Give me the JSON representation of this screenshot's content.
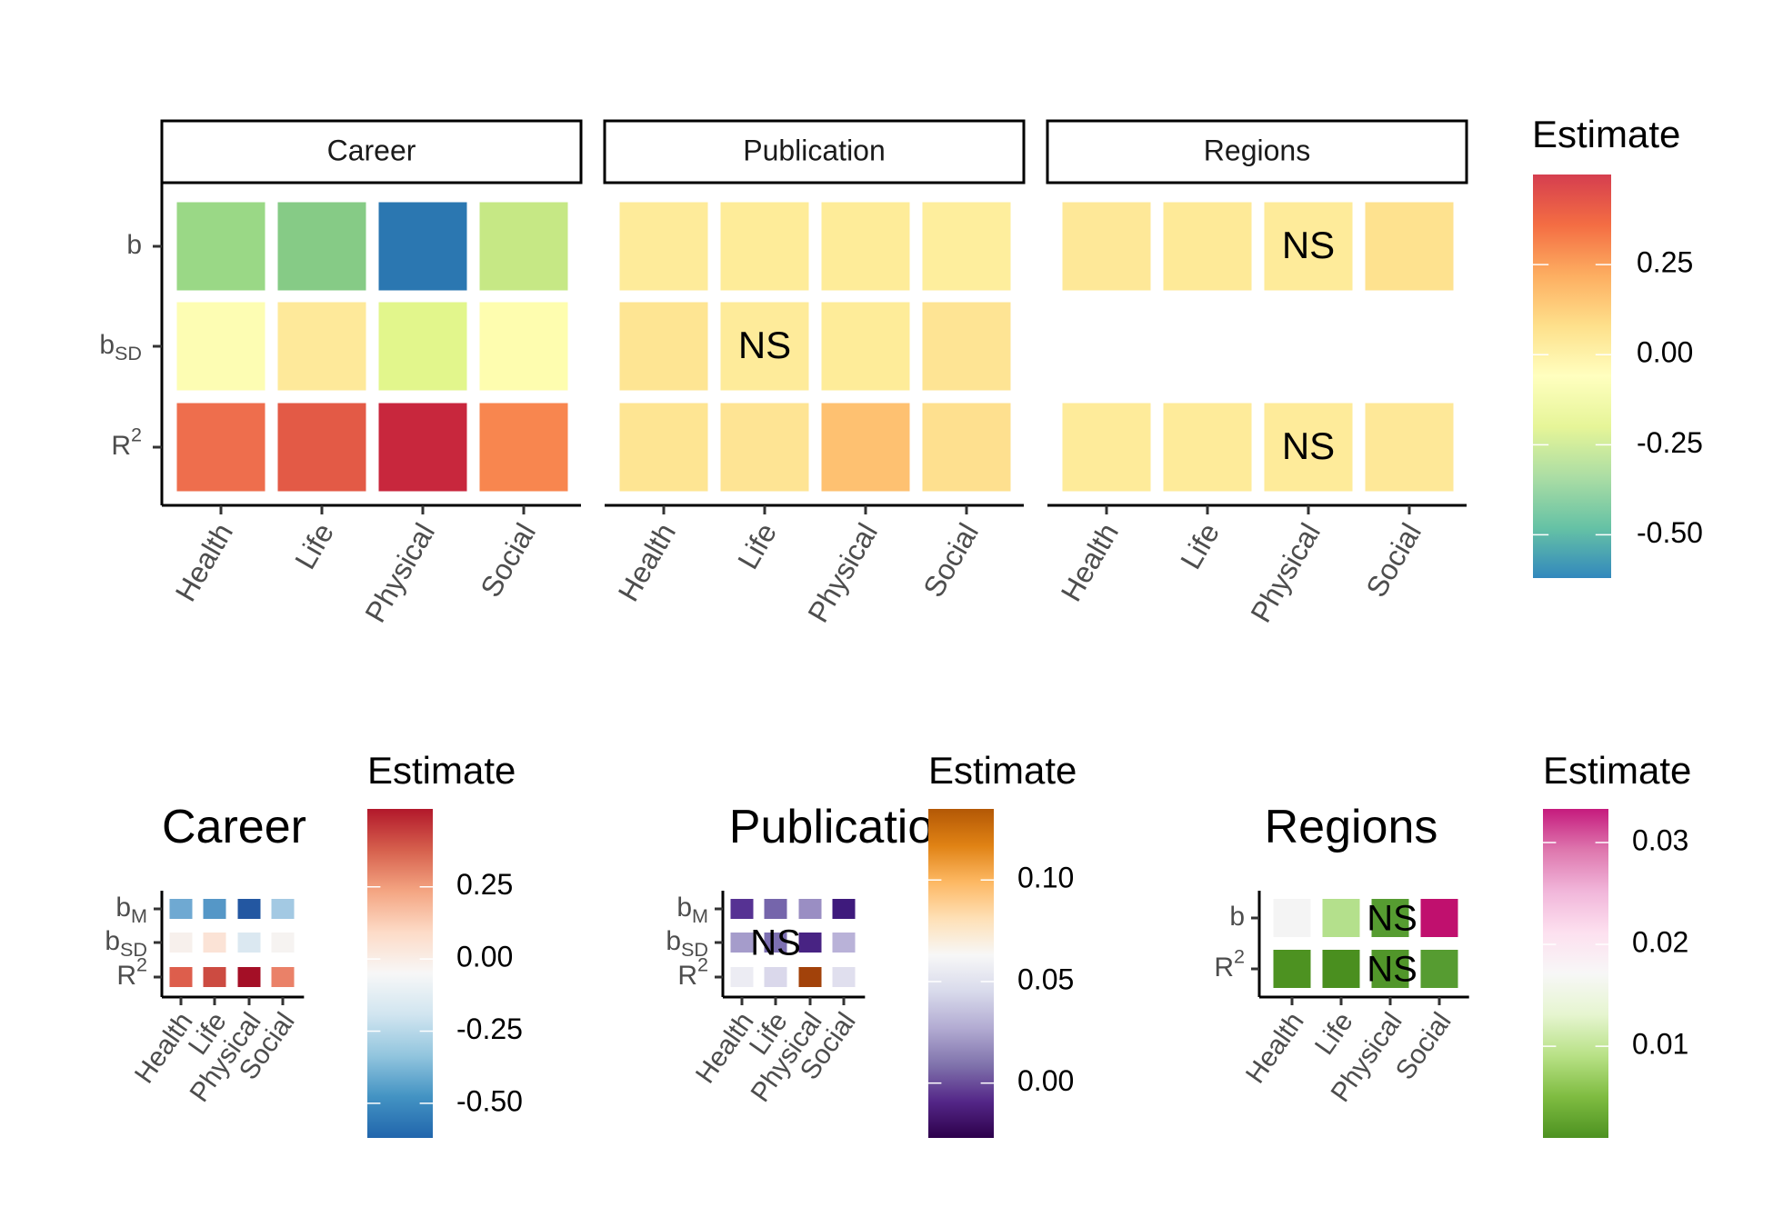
{
  "top": {
    "categories": [
      "Health",
      "Life",
      "Physical",
      "Social"
    ],
    "row_labels": [
      {
        "base": "b",
        "sub": "",
        "sup": ""
      },
      {
        "base": "b",
        "sub": "SD",
        "sup": ""
      },
      {
        "base": "R",
        "sub": "",
        "sup": "2"
      }
    ],
    "facets": [
      {
        "strip": "Career",
        "cells": [
          {
            "row": 0,
            "col": 0,
            "color": "#9ad886"
          },
          {
            "row": 0,
            "col": 1,
            "color": "#86cb86"
          },
          {
            "row": 0,
            "col": 2,
            "color": "#2b77b1"
          },
          {
            "row": 0,
            "col": 3,
            "color": "#c6e885"
          },
          {
            "row": 1,
            "col": 0,
            "color": "#fdfdb3"
          },
          {
            "row": 1,
            "col": 1,
            "color": "#fee99a"
          },
          {
            "row": 1,
            "col": 2,
            "color": "#e2f68c"
          },
          {
            "row": 1,
            "col": 3,
            "color": "#fefdaf"
          },
          {
            "row": 2,
            "col": 0,
            "color": "#ee6e4d"
          },
          {
            "row": 2,
            "col": 1,
            "color": "#e35a46"
          },
          {
            "row": 2,
            "col": 2,
            "color": "#c8273d"
          },
          {
            "row": 2,
            "col": 3,
            "color": "#f8864f"
          }
        ]
      },
      {
        "strip": "Publication",
        "cells": [
          {
            "row": 0,
            "col": 0,
            "color": "#feeb9a"
          },
          {
            "row": 0,
            "col": 1,
            "color": "#feec99"
          },
          {
            "row": 0,
            "col": 2,
            "color": "#feec99"
          },
          {
            "row": 0,
            "col": 3,
            "color": "#feee9d"
          },
          {
            "row": 1,
            "col": 0,
            "color": "#fee593"
          },
          {
            "row": 1,
            "col": 1,
            "color": "#feeb9a",
            "label": "NS"
          },
          {
            "row": 1,
            "col": 2,
            "color": "#feec99"
          },
          {
            "row": 1,
            "col": 3,
            "color": "#fee494"
          },
          {
            "row": 2,
            "col": 0,
            "color": "#fee593"
          },
          {
            "row": 2,
            "col": 1,
            "color": "#fee494"
          },
          {
            "row": 2,
            "col": 2,
            "color": "#fec171"
          },
          {
            "row": 2,
            "col": 3,
            "color": "#fee08f"
          }
        ]
      },
      {
        "strip": "Regions",
        "cells": [
          {
            "row": 0,
            "col": 0,
            "color": "#fee898"
          },
          {
            "row": 0,
            "col": 1,
            "color": "#feea98"
          },
          {
            "row": 0,
            "col": 2,
            "color": "#feeb9a",
            "label": "NS"
          },
          {
            "row": 0,
            "col": 3,
            "color": "#fee28f"
          },
          {
            "row": 2,
            "col": 0,
            "color": "#feeb9a"
          },
          {
            "row": 2,
            "col": 1,
            "color": "#feeb9a"
          },
          {
            "row": 2,
            "col": 2,
            "color": "#feeb9a",
            "label": "NS"
          },
          {
            "row": 2,
            "col": 3,
            "color": "#fee898"
          }
        ]
      }
    ],
    "legend": {
      "title": "Estimate",
      "ticks": [
        {
          "value": 0.25,
          "label": "0.25"
        },
        {
          "value": 0.0,
          "label": "0.00"
        },
        {
          "value": -0.25,
          "label": "-0.25"
        },
        {
          "value": -0.5,
          "label": "-0.50"
        }
      ],
      "range": [
        -0.62,
        0.5
      ],
      "colors": [
        "#d53e4f",
        "#f46d43",
        "#fdae61",
        "#fee08b",
        "#ffffbf",
        "#e6f598",
        "#abdda4",
        "#66c2a5",
        "#3288bd"
      ]
    }
  },
  "bottom": [
    {
      "title": "Career",
      "categories": [
        "Health",
        "Life",
        "Physical",
        "Social"
      ],
      "row_labels": [
        {
          "base": "b",
          "sub": "M",
          "sup": ""
        },
        {
          "base": "b",
          "sub": "SD",
          "sup": ""
        },
        {
          "base": "R",
          "sub": "",
          "sup": "2"
        }
      ],
      "cells": [
        {
          "row": 0,
          "col": 0,
          "color": "#6fa9d2"
        },
        {
          "row": 0,
          "col": 1,
          "color": "#5597c7"
        },
        {
          "row": 0,
          "col": 2,
          "color": "#2357a1"
        },
        {
          "row": 0,
          "col": 3,
          "color": "#a3c9e3"
        },
        {
          "row": 1,
          "col": 0,
          "color": "#f7f0ec"
        },
        {
          "row": 1,
          "col": 1,
          "color": "#fbe3d6"
        },
        {
          "row": 1,
          "col": 2,
          "color": "#dbe8f1"
        },
        {
          "row": 1,
          "col": 3,
          "color": "#f6f3f1"
        },
        {
          "row": 2,
          "col": 0,
          "color": "#dd5e4c"
        },
        {
          "row": 2,
          "col": 1,
          "color": "#cc4b41"
        },
        {
          "row": 2,
          "col": 2,
          "color": "#a40f26"
        },
        {
          "row": 2,
          "col": 3,
          "color": "#ea8168"
        }
      ],
      "legend": {
        "title": "Estimate",
        "ticks": [
          {
            "value": 0.25,
            "label": "0.25"
          },
          {
            "value": 0.0,
            "label": "0.00"
          },
          {
            "value": -0.25,
            "label": "-0.25"
          },
          {
            "value": -0.5,
            "label": "-0.50"
          }
        ],
        "range": [
          -0.62,
          0.52
        ],
        "colors": [
          "#b2182b",
          "#d6604d",
          "#f4a582",
          "#fddbc7",
          "#f7f7f7",
          "#d1e5f0",
          "#92c5de",
          "#4393c3",
          "#2166ac"
        ]
      }
    },
    {
      "title": "Publication",
      "categories": [
        "Health",
        "Life",
        "Physical",
        "Social"
      ],
      "row_labels": [
        {
          "base": "b",
          "sub": "M",
          "sup": ""
        },
        {
          "base": "b",
          "sub": "SD",
          "sup": ""
        },
        {
          "base": "R",
          "sub": "",
          "sup": "2"
        }
      ],
      "cells": [
        {
          "row": 0,
          "col": 0,
          "color": "#563293"
        },
        {
          "row": 0,
          "col": 1,
          "color": "#7565ab"
        },
        {
          "row": 0,
          "col": 2,
          "color": "#9a8ec3"
        },
        {
          "row": 0,
          "col": 3,
          "color": "#3e1a7c"
        },
        {
          "row": 1,
          "col": 0,
          "color": "#a59ccb"
        },
        {
          "row": 1,
          "col": 1,
          "color": "#7d70b2",
          "label": "NS"
        },
        {
          "row": 1,
          "col": 2,
          "color": "#482383"
        },
        {
          "row": 1,
          "col": 3,
          "color": "#b9b2d8"
        },
        {
          "row": 2,
          "col": 0,
          "color": "#ececf3"
        },
        {
          "row": 2,
          "col": 1,
          "color": "#dad8eb"
        },
        {
          "row": 2,
          "col": 2,
          "color": "#a2420a"
        },
        {
          "row": 2,
          "col": 3,
          "color": "#e0dfee"
        }
      ],
      "legend": {
        "title": "Estimate",
        "ticks": [
          {
            "value": 0.1,
            "label": "0.10"
          },
          {
            "value": 0.05,
            "label": "0.05"
          },
          {
            "value": 0.0,
            "label": "0.00"
          }
        ],
        "range": [
          -0.027,
          0.135
        ],
        "colors": [
          "#b35806",
          "#e08214",
          "#fdb863",
          "#fee0b6",
          "#f7f7f7",
          "#d8daeb",
          "#b2abd2",
          "#8073ac",
          "#542788",
          "#2d004b"
        ]
      }
    },
    {
      "title": "Regions",
      "categories": [
        "Health",
        "Life",
        "Physical",
        "Social"
      ],
      "row_labels": [
        {
          "base": "b",
          "sub": "",
          "sup": ""
        },
        {
          "base": "R",
          "sub": "",
          "sup": "2"
        }
      ],
      "cells": [
        {
          "row": 0,
          "col": 0,
          "color": "#f4f4f4"
        },
        {
          "row": 0,
          "col": 1,
          "color": "#b4e08c"
        },
        {
          "row": 0,
          "col": 2,
          "color": "#569c31",
          "label": "NS"
        },
        {
          "row": 0,
          "col": 3,
          "color": "#c0106e"
        },
        {
          "row": 1,
          "col": 0,
          "color": "#4d9221"
        },
        {
          "row": 1,
          "col": 1,
          "color": "#4a8f1f"
        },
        {
          "row": 1,
          "col": 2,
          "color": "#51962a",
          "label": "NS"
        },
        {
          "row": 1,
          "col": 3,
          "color": "#569c31"
        }
      ],
      "legend": {
        "title": "Estimate",
        "ticks": [
          {
            "value": 0.03,
            "label": "0.03"
          },
          {
            "value": 0.02,
            "label": "0.02"
          },
          {
            "value": 0.01,
            "label": "0.01"
          }
        ],
        "range": [
          0.001,
          0.0333
        ],
        "colors": [
          "#c51b7d",
          "#de77ae",
          "#f1b6da",
          "#fde0ef",
          "#f7f7f7",
          "#e6f5d0",
          "#b8e186",
          "#7fbc41",
          "#4d9221"
        ]
      }
    }
  ]
}
